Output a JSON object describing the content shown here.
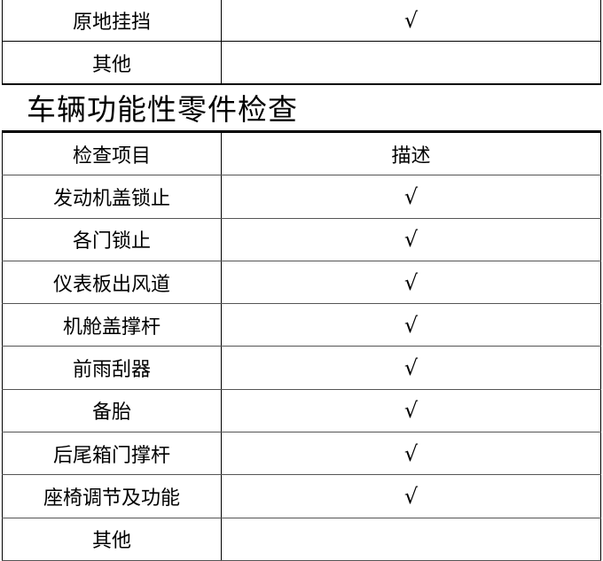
{
  "table_top": {
    "rows": [
      {
        "item": "原地挂挡",
        "desc": "√"
      },
      {
        "item": "其他",
        "desc": ""
      }
    ]
  },
  "section_title": "车辆功能性零件检查",
  "table_main": {
    "headers": {
      "item": "检查项目",
      "desc": "描述"
    },
    "rows": [
      {
        "item": "发动机盖锁止",
        "desc": "√"
      },
      {
        "item": "各门锁止",
        "desc": "√"
      },
      {
        "item": "仪表板出风道",
        "desc": "√"
      },
      {
        "item": "机舱盖撑杆",
        "desc": "√"
      },
      {
        "item": "前雨刮器",
        "desc": "√"
      },
      {
        "item": "备胎",
        "desc": "√"
      },
      {
        "item": "后尾箱门撑杆",
        "desc": "√"
      },
      {
        "item": "座椅调节及功能",
        "desc": "√"
      },
      {
        "item": "其他",
        "desc": ""
      }
    ]
  }
}
